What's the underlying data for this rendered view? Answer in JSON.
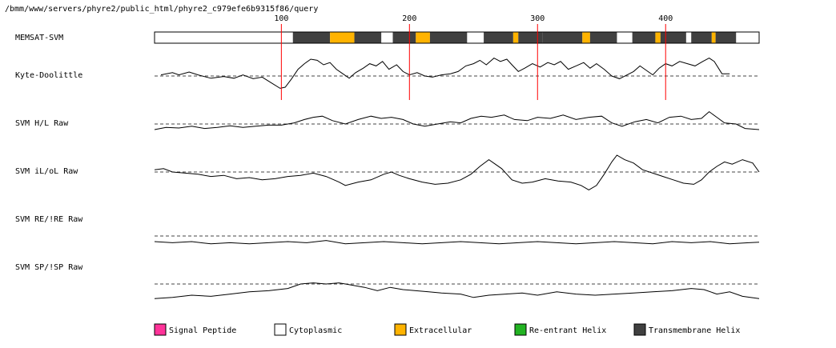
{
  "header": {
    "path": "/bmm/www/servers/phyre2/public_html/phyre2_c979efe6b9315f86/query"
  },
  "chart_data": {
    "type": "line",
    "x_range": [
      1,
      473
    ],
    "x_ticks": [
      "100",
      "200",
      "300",
      "400"
    ],
    "x_tick_values": [
      100,
      200,
      300,
      400
    ],
    "colors": {
      "tick_line": "#ff0000",
      "signal_peptide": "#ff3399",
      "cytoplasmic": "#ffffff",
      "extracellular": "#ffb300",
      "reentrant_helix": "#22b322",
      "transmembrane_helix": "#404040"
    },
    "memsat": {
      "label": "MEMSAT-SVM",
      "segments": [
        {
          "start": 1,
          "end": 109,
          "type": "cytoplasmic"
        },
        {
          "start": 109,
          "end": 138,
          "type": "transmembrane_helix"
        },
        {
          "start": 138,
          "end": 157,
          "type": "extracellular"
        },
        {
          "start": 157,
          "end": 178,
          "type": "transmembrane_helix"
        },
        {
          "start": 178,
          "end": 187,
          "type": "cytoplasmic"
        },
        {
          "start": 187,
          "end": 205,
          "type": "transmembrane_helix"
        },
        {
          "start": 205,
          "end": 216,
          "type": "extracellular"
        },
        {
          "start": 216,
          "end": 245,
          "type": "transmembrane_helix"
        },
        {
          "start": 245,
          "end": 258,
          "type": "cytoplasmic"
        },
        {
          "start": 258,
          "end": 281,
          "type": "transmembrane_helix"
        },
        {
          "start": 281,
          "end": 285,
          "type": "extracellular"
        },
        {
          "start": 285,
          "end": 304,
          "type": "transmembrane_helix"
        },
        {
          "start": 304,
          "end": 335,
          "type": "transmembrane_helix"
        },
        {
          "start": 335,
          "end": 341,
          "type": "extracellular"
        },
        {
          "start": 341,
          "end": 362,
          "type": "transmembrane_helix"
        },
        {
          "start": 362,
          "end": 374,
          "type": "cytoplasmic"
        },
        {
          "start": 374,
          "end": 392,
          "type": "transmembrane_helix"
        },
        {
          "start": 392,
          "end": 396,
          "type": "extracellular"
        },
        {
          "start": 396,
          "end": 416,
          "type": "transmembrane_helix"
        },
        {
          "start": 416,
          "end": 420,
          "type": "cytoplasmic"
        },
        {
          "start": 420,
          "end": 436,
          "type": "transmembrane_helix"
        },
        {
          "start": 436,
          "end": 439,
          "type": "extracellular"
        },
        {
          "start": 439,
          "end": 455,
          "type": "transmembrane_helix"
        },
        {
          "start": 455,
          "end": 473,
          "type": "cytoplasmic"
        }
      ]
    },
    "tracks": [
      {
        "label": "Kyte-Doolittle",
        "points": [
          [
            6,
            0.05
          ],
          [
            15,
            0.15
          ],
          [
            20,
            0.05
          ],
          [
            28,
            0.18
          ],
          [
            35,
            0.05
          ],
          [
            45,
            -0.1
          ],
          [
            55,
            -0.02
          ],
          [
            63,
            -0.1
          ],
          [
            70,
            0.05
          ],
          [
            78,
            -0.12
          ],
          [
            85,
            -0.05
          ],
          [
            92,
            -0.3
          ],
          [
            99,
            -0.55
          ],
          [
            103,
            -0.5
          ],
          [
            108,
            -0.12
          ],
          [
            113,
            0.3
          ],
          [
            118,
            0.55
          ],
          [
            123,
            0.75
          ],
          [
            128,
            0.7
          ],
          [
            133,
            0.5
          ],
          [
            138,
            0.6
          ],
          [
            143,
            0.3
          ],
          [
            148,
            0.1
          ],
          [
            153,
            -0.1
          ],
          [
            158,
            0.15
          ],
          [
            164,
            0.35
          ],
          [
            169,
            0.55
          ],
          [
            174,
            0.45
          ],
          [
            179,
            0.65
          ],
          [
            184,
            0.3
          ],
          [
            190,
            0.5
          ],
          [
            195,
            0.2
          ],
          [
            200,
            0.05
          ],
          [
            206,
            0.15
          ],
          [
            212,
            0.0
          ],
          [
            218,
            -0.05
          ],
          [
            225,
            0.05
          ],
          [
            232,
            0.1
          ],
          [
            238,
            0.2
          ],
          [
            244,
            0.45
          ],
          [
            250,
            0.55
          ],
          [
            255,
            0.7
          ],
          [
            260,
            0.5
          ],
          [
            266,
            0.8
          ],
          [
            271,
            0.65
          ],
          [
            276,
            0.75
          ],
          [
            280,
            0.5
          ],
          [
            285,
            0.2
          ],
          [
            290,
            0.35
          ],
          [
            296,
            0.55
          ],
          [
            302,
            0.4
          ],
          [
            308,
            0.6
          ],
          [
            313,
            0.5
          ],
          [
            318,
            0.65
          ],
          [
            324,
            0.3
          ],
          [
            330,
            0.45
          ],
          [
            336,
            0.6
          ],
          [
            341,
            0.35
          ],
          [
            346,
            0.55
          ],
          [
            352,
            0.3
          ],
          [
            358,
            0.0
          ],
          [
            364,
            -0.12
          ],
          [
            370,
            0.05
          ],
          [
            375,
            0.2
          ],
          [
            380,
            0.45
          ],
          [
            385,
            0.25
          ],
          [
            390,
            0.05
          ],
          [
            395,
            0.35
          ],
          [
            400,
            0.55
          ],
          [
            405,
            0.45
          ],
          [
            411,
            0.65
          ],
          [
            417,
            0.55
          ],
          [
            423,
            0.45
          ],
          [
            429,
            0.65
          ],
          [
            434,
            0.8
          ],
          [
            438,
            0.65
          ],
          [
            444,
            0.1
          ],
          [
            450,
            0.1
          ]
        ]
      },
      {
        "label": "SVM H/L Raw",
        "points": [
          [
            1,
            -0.25
          ],
          [
            10,
            -0.15
          ],
          [
            20,
            -0.18
          ],
          [
            30,
            -0.1
          ],
          [
            40,
            -0.2
          ],
          [
            50,
            -0.15
          ],
          [
            60,
            -0.08
          ],
          [
            70,
            -0.15
          ],
          [
            80,
            -0.1
          ],
          [
            90,
            -0.05
          ],
          [
            100,
            -0.05
          ],
          [
            110,
            0.05
          ],
          [
            118,
            0.2
          ],
          [
            125,
            0.3
          ],
          [
            132,
            0.35
          ],
          [
            140,
            0.15
          ],
          [
            150,
            0.0
          ],
          [
            160,
            0.2
          ],
          [
            170,
            0.35
          ],
          [
            178,
            0.25
          ],
          [
            186,
            0.3
          ],
          [
            195,
            0.2
          ],
          [
            203,
            0.0
          ],
          [
            212,
            -0.1
          ],
          [
            222,
            0.0
          ],
          [
            232,
            0.1
          ],
          [
            240,
            0.05
          ],
          [
            248,
            0.25
          ],
          [
            256,
            0.35
          ],
          [
            264,
            0.3
          ],
          [
            274,
            0.4
          ],
          [
            282,
            0.2
          ],
          [
            292,
            0.15
          ],
          [
            300,
            0.3
          ],
          [
            310,
            0.25
          ],
          [
            320,
            0.4
          ],
          [
            330,
            0.2
          ],
          [
            340,
            0.3
          ],
          [
            350,
            0.35
          ],
          [
            358,
            0.05
          ],
          [
            366,
            -0.1
          ],
          [
            376,
            0.1
          ],
          [
            385,
            0.2
          ],
          [
            394,
            0.05
          ],
          [
            403,
            0.3
          ],
          [
            412,
            0.35
          ],
          [
            420,
            0.2
          ],
          [
            428,
            0.25
          ],
          [
            434,
            0.55
          ],
          [
            440,
            0.3
          ],
          [
            446,
            0.05
          ],
          [
            455,
            0.0
          ],
          [
            462,
            -0.2
          ],
          [
            473,
            -0.25
          ]
        ]
      },
      {
        "label": "SVM iL/oL Raw",
        "points": [
          [
            1,
            0.1
          ],
          [
            8,
            0.15
          ],
          [
            15,
            0.0
          ],
          [
            25,
            -0.05
          ],
          [
            35,
            -0.1
          ],
          [
            45,
            -0.2
          ],
          [
            55,
            -0.15
          ],
          [
            65,
            -0.3
          ],
          [
            75,
            -0.25
          ],
          [
            85,
            -0.35
          ],
          [
            95,
            -0.3
          ],
          [
            105,
            -0.2
          ],
          [
            115,
            -0.15
          ],
          [
            125,
            -0.05
          ],
          [
            135,
            -0.2
          ],
          [
            145,
            -0.45
          ],
          [
            150,
            -0.6
          ],
          [
            160,
            -0.45
          ],
          [
            170,
            -0.35
          ],
          [
            180,
            -0.1
          ],
          [
            186,
            0.0
          ],
          [
            192,
            -0.15
          ],
          [
            200,
            -0.3
          ],
          [
            210,
            -0.45
          ],
          [
            220,
            -0.55
          ],
          [
            230,
            -0.5
          ],
          [
            240,
            -0.35
          ],
          [
            248,
            -0.1
          ],
          [
            255,
            0.25
          ],
          [
            262,
            0.55
          ],
          [
            267,
            0.35
          ],
          [
            272,
            0.15
          ],
          [
            280,
            -0.35
          ],
          [
            288,
            -0.5
          ],
          [
            296,
            -0.45
          ],
          [
            306,
            -0.3
          ],
          [
            316,
            -0.4
          ],
          [
            326,
            -0.45
          ],
          [
            334,
            -0.6
          ],
          [
            340,
            -0.8
          ],
          [
            346,
            -0.6
          ],
          [
            352,
            -0.1
          ],
          [
            358,
            0.45
          ],
          [
            362,
            0.75
          ],
          [
            368,
            0.55
          ],
          [
            375,
            0.4
          ],
          [
            382,
            0.1
          ],
          [
            390,
            -0.05
          ],
          [
            398,
            -0.2
          ],
          [
            406,
            -0.35
          ],
          [
            414,
            -0.5
          ],
          [
            422,
            -0.55
          ],
          [
            428,
            -0.35
          ],
          [
            434,
            0.0
          ],
          [
            440,
            0.25
          ],
          [
            446,
            0.45
          ],
          [
            452,
            0.35
          ],
          [
            460,
            0.55
          ],
          [
            468,
            0.4
          ],
          [
            473,
            0.0
          ]
        ]
      },
      {
        "label": "SVM RE/!RE Raw",
        "points": [
          [
            1,
            -0.25
          ],
          [
            15,
            -0.3
          ],
          [
            30,
            -0.25
          ],
          [
            45,
            -0.35
          ],
          [
            60,
            -0.3
          ],
          [
            75,
            -0.35
          ],
          [
            90,
            -0.3
          ],
          [
            105,
            -0.25
          ],
          [
            120,
            -0.3
          ],
          [
            135,
            -0.2
          ],
          [
            150,
            -0.35
          ],
          [
            165,
            -0.3
          ],
          [
            180,
            -0.25
          ],
          [
            195,
            -0.3
          ],
          [
            210,
            -0.35
          ],
          [
            225,
            -0.3
          ],
          [
            240,
            -0.25
          ],
          [
            255,
            -0.3
          ],
          [
            270,
            -0.35
          ],
          [
            285,
            -0.3
          ],
          [
            300,
            -0.25
          ],
          [
            315,
            -0.3
          ],
          [
            330,
            -0.35
          ],
          [
            345,
            -0.3
          ],
          [
            360,
            -0.25
          ],
          [
            375,
            -0.3
          ],
          [
            390,
            -0.35
          ],
          [
            405,
            -0.25
          ],
          [
            420,
            -0.3
          ],
          [
            435,
            -0.25
          ],
          [
            450,
            -0.35
          ],
          [
            465,
            -0.3
          ],
          [
            473,
            -0.28
          ]
        ]
      },
      {
        "label": "SVM SP/!SP Raw",
        "points": [
          [
            1,
            -0.65
          ],
          [
            15,
            -0.6
          ],
          [
            30,
            -0.5
          ],
          [
            45,
            -0.55
          ],
          [
            60,
            -0.45
          ],
          [
            75,
            -0.35
          ],
          [
            90,
            -0.3
          ],
          [
            105,
            -0.2
          ],
          [
            115,
            0.0
          ],
          [
            125,
            0.05
          ],
          [
            135,
            0.0
          ],
          [
            145,
            0.05
          ],
          [
            155,
            -0.05
          ],
          [
            165,
            -0.15
          ],
          [
            175,
            -0.3
          ],
          [
            185,
            -0.15
          ],
          [
            195,
            -0.25
          ],
          [
            205,
            -0.3
          ],
          [
            215,
            -0.35
          ],
          [
            225,
            -0.4
          ],
          [
            240,
            -0.45
          ],
          [
            250,
            -0.6
          ],
          [
            262,
            -0.5
          ],
          [
            275,
            -0.45
          ],
          [
            288,
            -0.4
          ],
          [
            300,
            -0.5
          ],
          [
            315,
            -0.35
          ],
          [
            330,
            -0.45
          ],
          [
            345,
            -0.5
          ],
          [
            360,
            -0.45
          ],
          [
            375,
            -0.4
          ],
          [
            390,
            -0.35
          ],
          [
            405,
            -0.3
          ],
          [
            420,
            -0.2
          ],
          [
            430,
            -0.25
          ],
          [
            440,
            -0.45
          ],
          [
            450,
            -0.35
          ],
          [
            460,
            -0.55
          ],
          [
            473,
            -0.65
          ]
        ]
      }
    ],
    "legend": [
      {
        "label": "Signal Peptide",
        "type": "signal_peptide"
      },
      {
        "label": "Cytoplasmic",
        "type": "cytoplasmic"
      },
      {
        "label": "Extracellular",
        "type": "extracellular"
      },
      {
        "label": "Re-entrant Helix",
        "type": "reentrant_helix"
      },
      {
        "label": "Transmembrane Helix",
        "type": "transmembrane_helix"
      }
    ]
  }
}
